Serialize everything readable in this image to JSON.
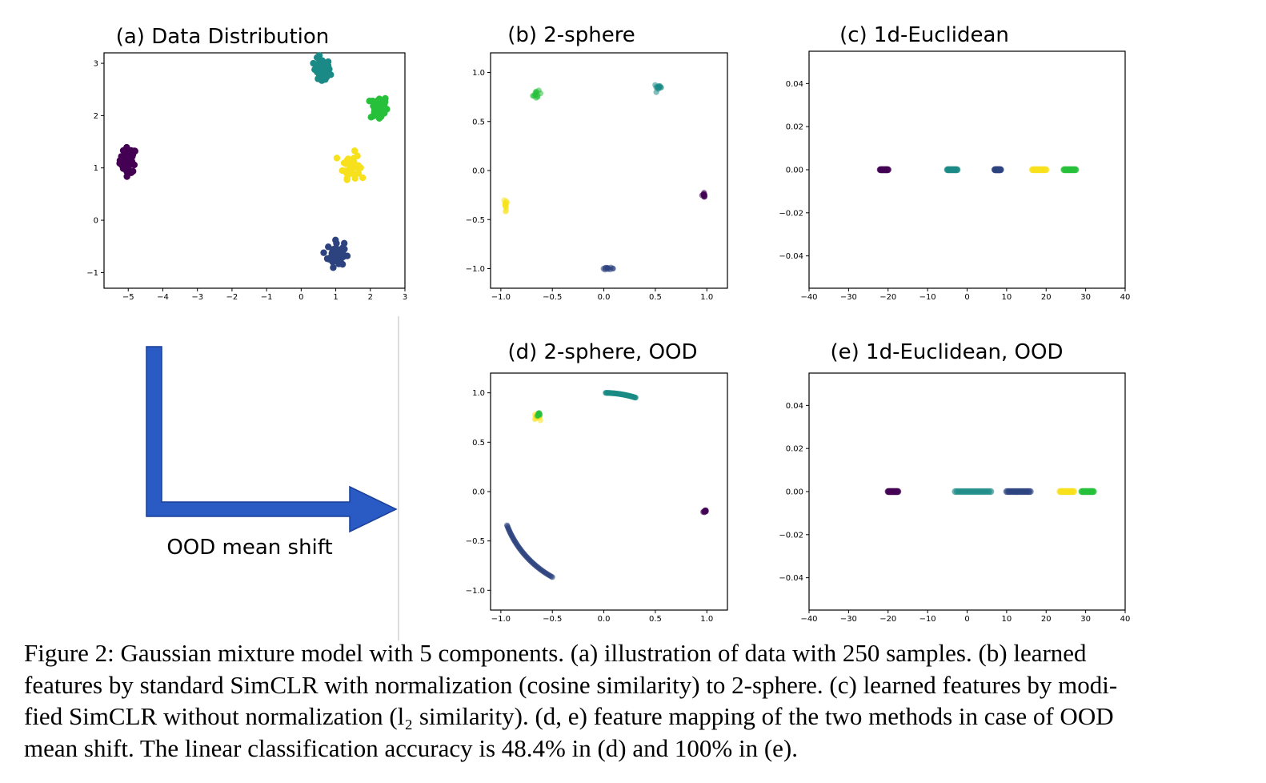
{
  "arrow_label": "OOD mean shift",
  "colors": {
    "purple": "#440154",
    "navy": "#2d437f",
    "teal": "#1b8a86",
    "green": "#27c03a",
    "yellow": "#f7e11c",
    "arrow": "#2a5bc4",
    "arrow_edge": "#1a3f96"
  },
  "caption_lines": [
    "Figure 2: Gaussian mixture model with 5 components.  (a) illustration of data with 250 samples.  (b) learned",
    "features by standard SimCLR with normalization (cosine similarity) to 2-sphere. (c) learned features by modi-",
    "fied SimCLR without normalization (l₂ similarity). (d, e) feature mapping of the two methods in case of OOD",
    "mean shift. The linear classification accuracy is 48.4% in (d) and 100% in (e)."
  ],
  "chart_data": [
    {
      "id": "a",
      "type": "scatter",
      "title": "(a) Data Distribution",
      "xlim": [
        -5.7,
        3.0
      ],
      "ylim": [
        -1.3,
        3.2
      ],
      "xticks": [
        -5,
        -4,
        -3,
        -2,
        -1,
        0,
        1,
        2,
        3
      ],
      "xtick_labels": [
        "−5",
        "−4",
        "−3",
        "−2",
        "−1",
        "0",
        "1",
        "2",
        "3"
      ],
      "yticks": [
        -1,
        0,
        1,
        2,
        3
      ],
      "ytick_labels": [
        "−1",
        "0",
        "1",
        "2",
        "3"
      ],
      "clusters": [
        {
          "color": "purple",
          "center": [
            -5.0,
            1.15
          ],
          "spread": [
            0.12,
            0.12
          ],
          "shape": "blob"
        },
        {
          "color": "teal",
          "center": [
            0.6,
            2.85
          ],
          "spread": [
            0.12,
            0.12
          ],
          "shape": "blob"
        },
        {
          "color": "green",
          "center": [
            2.25,
            2.15
          ],
          "spread": [
            0.12,
            0.12
          ],
          "shape": "blob"
        },
        {
          "color": "yellow",
          "center": [
            1.45,
            1.05
          ],
          "spread": [
            0.12,
            0.12
          ],
          "shape": "blob"
        },
        {
          "color": "navy",
          "center": [
            1.0,
            -0.65
          ],
          "spread": [
            0.12,
            0.12
          ],
          "shape": "blob"
        }
      ]
    },
    {
      "id": "b",
      "type": "scatter",
      "title": "(b) 2-sphere",
      "xlim": [
        -1.1,
        1.2
      ],
      "ylim": [
        -1.2,
        1.2
      ],
      "xticks": [
        -1.0,
        -0.5,
        0.0,
        0.5,
        1.0
      ],
      "xtick_labels": [
        "−1.0",
        "−0.5",
        "0.0",
        "0.5",
        "1.0"
      ],
      "yticks": [
        -1.0,
        -0.5,
        0.0,
        0.5,
        1.0
      ],
      "ytick_labels": [
        "−1.0",
        "−0.5",
        "0.0",
        "0.5",
        "1.0"
      ],
      "clusters": [
        {
          "color": "green",
          "center": [
            -0.65,
            0.77
          ],
          "spread": [
            0.02,
            0.02
          ],
          "shape": "dot"
        },
        {
          "color": "teal",
          "center": [
            0.53,
            0.85
          ],
          "spread": [
            0.02,
            0.015
          ],
          "shape": "dot"
        },
        {
          "color": "yellow",
          "center": [
            -0.95,
            -0.34
          ],
          "spread": [
            0.01,
            0.03
          ],
          "shape": "dot"
        },
        {
          "color": "navy",
          "center": [
            0.04,
            -1.0
          ],
          "spread": [
            0.03,
            0.005
          ],
          "shape": "dot"
        },
        {
          "color": "purple",
          "center": [
            0.97,
            -0.25
          ],
          "spread": [
            0.01,
            0.01
          ],
          "shape": "dot"
        }
      ]
    },
    {
      "id": "c",
      "type": "scatter",
      "title": "(c) 1d-Euclidean",
      "xlim": [
        -40,
        40
      ],
      "ylim": [
        -0.055,
        0.055
      ],
      "xticks": [
        -40,
        -30,
        -20,
        -10,
        0,
        10,
        20,
        30,
        40
      ],
      "xtick_labels": [
        "−40",
        "−30",
        "−20",
        "−10",
        "0",
        "10",
        "20",
        "30",
        "40"
      ],
      "yticks": [
        0.04,
        0.02,
        0.0,
        -0.02,
        -0.04
      ],
      "ytick_labels": [
        "0.04",
        "0.02",
        "0.00",
        "−0.02",
        "−0.04"
      ],
      "clusters": [
        {
          "color": "purple",
          "range": [
            -22,
            -20
          ],
          "shape": "strip"
        },
        {
          "color": "teal",
          "range": [
            -5,
            -2.5
          ],
          "shape": "strip"
        },
        {
          "color": "navy",
          "range": [
            7,
            8.5
          ],
          "shape": "strip"
        },
        {
          "color": "yellow",
          "range": [
            16.5,
            20
          ],
          "shape": "strip"
        },
        {
          "color": "green",
          "range": [
            24.5,
            27.5
          ],
          "shape": "strip"
        }
      ]
    },
    {
      "id": "d",
      "type": "scatter",
      "title": "(d) 2-sphere, OOD",
      "xlim": [
        -1.1,
        1.2
      ],
      "ylim": [
        -1.2,
        1.2
      ],
      "xticks": [
        -1.0,
        -0.5,
        0.0,
        0.5,
        1.0
      ],
      "xtick_labels": [
        "−1.0",
        "−0.5",
        "0.0",
        "0.5",
        "1.0"
      ],
      "yticks": [
        -1.0,
        -0.5,
        0.0,
        0.5,
        1.0
      ],
      "ytick_labels": [
        "−1.0",
        "−0.5",
        "0.0",
        "0.5",
        "1.0"
      ],
      "clusters": [
        {
          "color": "yellow",
          "center": [
            -0.65,
            0.76
          ],
          "spread": [
            0.015,
            0.015
          ],
          "shape": "dot"
        },
        {
          "color": "green",
          "center": [
            -0.63,
            0.78
          ],
          "spread": [
            0.008,
            0.008
          ],
          "shape": "dot"
        },
        {
          "color": "teal",
          "arc_deg": [
            72,
            89
          ],
          "shape": "arc"
        },
        {
          "color": "navy",
          "arc_deg": [
            200,
            240
          ],
          "shape": "arc"
        },
        {
          "color": "purple",
          "center": [
            0.98,
            -0.2
          ],
          "spread": [
            0.01,
            0.01
          ],
          "shape": "dot"
        }
      ]
    },
    {
      "id": "e",
      "type": "scatter",
      "title": "(e) 1d-Euclidean, OOD",
      "xlim": [
        -40,
        40
      ],
      "ylim": [
        -0.055,
        0.055
      ],
      "xticks": [
        -40,
        -30,
        -20,
        -10,
        0,
        10,
        20,
        30,
        40
      ],
      "xtick_labels": [
        "−40",
        "−30",
        "−20",
        "−10",
        "0",
        "10",
        "20",
        "30",
        "40"
      ],
      "yticks": [
        0.04,
        0.02,
        0.0,
        -0.02,
        -0.04
      ],
      "ytick_labels": [
        "0.04",
        "0.02",
        "0.00",
        "−0.02",
        "−0.04"
      ],
      "clusters": [
        {
          "color": "purple",
          "range": [
            -20,
            -17.5
          ],
          "shape": "strip"
        },
        {
          "color": "teal",
          "range": [
            -3,
            6
          ],
          "shape": "strip"
        },
        {
          "color": "navy",
          "range": [
            10,
            16
          ],
          "shape": "strip"
        },
        {
          "color": "yellow",
          "range": [
            23.5,
            27
          ],
          "shape": "strip"
        },
        {
          "color": "green",
          "range": [
            29,
            32
          ],
          "shape": "strip"
        }
      ]
    }
  ]
}
